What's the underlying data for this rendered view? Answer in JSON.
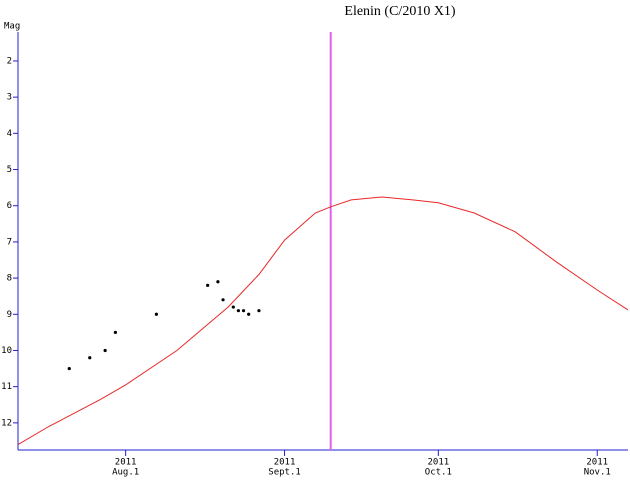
{
  "chart_data": {
    "type": "line",
    "title": "Elenin (C/2010 X1)",
    "y_label": "Mag",
    "ylim": [
      1.2,
      12.75
    ],
    "y_inverted": true,
    "yticks": [
      2,
      3,
      4,
      5,
      6,
      7,
      8,
      9,
      10,
      11,
      12
    ],
    "xlim": [
      "2011-07-11",
      "2011-11-07"
    ],
    "xticks": [
      {
        "value": "2011-08-01",
        "year": "2011",
        "label": "Aug.1"
      },
      {
        "value": "2011-09-01",
        "year": "2011",
        "label": "Sept.1"
      },
      {
        "value": "2011-10-01",
        "year": "2011",
        "label": "Oct.1"
      },
      {
        "value": "2011-11-01",
        "year": "2011",
        "label": "Nov.1"
      }
    ],
    "axis_color": "#2020d0",
    "marker_line": {
      "x": "2011-09-10",
      "color": "#e060e8"
    },
    "series": [
      {
        "kind": "line",
        "color": "#e82828",
        "x": [
          "2011-07-11",
          "2011-07-17",
          "2011-07-27",
          "2011-08-01",
          "2011-08-11",
          "2011-08-21",
          "2011-08-27",
          "2011-09-01",
          "2011-09-07",
          "2011-09-10",
          "2011-09-14",
          "2011-09-20",
          "2011-09-26",
          "2011-10-01",
          "2011-10-08",
          "2011-10-16",
          "2011-10-24",
          "2011-11-01",
          "2011-11-07"
        ],
        "values": [
          12.6,
          12.1,
          11.36,
          10.95,
          10.0,
          8.8,
          7.9,
          6.95,
          6.2,
          6.03,
          5.84,
          5.76,
          5.84,
          5.92,
          6.2,
          6.72,
          7.55,
          8.33,
          8.88
        ]
      },
      {
        "kind": "scatter",
        "color": "#000000",
        "x": [
          "2011-07-21",
          "2011-07-25",
          "2011-07-28",
          "2011-07-30",
          "2011-08-07",
          "2011-08-17",
          "2011-08-19",
          "2011-08-20",
          "2011-08-22",
          "2011-08-23",
          "2011-08-24",
          "2011-08-25",
          "2011-08-27"
        ],
        "values": [
          10.5,
          10.2,
          10.0,
          9.5,
          9.0,
          8.2,
          8.1,
          8.6,
          8.8,
          8.9,
          8.9,
          9.0,
          8.9
        ]
      }
    ]
  }
}
